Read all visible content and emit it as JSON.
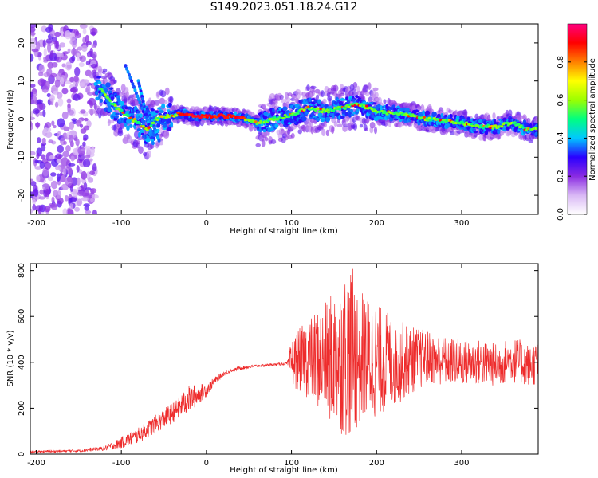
{
  "title": "S149.2023.051.18.24.G12",
  "chart_data": [
    {
      "type": "heatmap",
      "title": "S149.2023.051.18.24.G12",
      "xlabel": "Height of straight line (km)",
      "ylabel": "Frequency (Hz)",
      "xlim": [
        -207,
        390
      ],
      "ylim": [
        -25,
        25
      ],
      "x_ticks": [
        -200,
        -100,
        0,
        100,
        200,
        300
      ],
      "y_ticks": [
        -20,
        -10,
        0,
        10,
        20
      ],
      "grid": false,
      "colorbar": {
        "label": "Normalized spectral amplitude",
        "range": [
          0,
          1
        ],
        "ticks": [
          0.0,
          0.2,
          0.4,
          0.6,
          0.8
        ],
        "colors": [
          "#ffffff",
          "#d9b8f5",
          "#8a2be2",
          "#2a00ff",
          "#00c8ff",
          "#00ff80",
          "#9bff00",
          "#ffff00",
          "#ff8000",
          "#ff0000",
          "#ff0080"
        ]
      },
      "ridge": {
        "description_only": false,
        "x": [
          -125,
          -110,
          -95,
          -80,
          -70,
          -60,
          -50,
          -40,
          -30,
          -20,
          0,
          20,
          40,
          60,
          80,
          100,
          120,
          140,
          160,
          180,
          200,
          220,
          240,
          260,
          280,
          300,
          320,
          340,
          360,
          380,
          390
        ],
        "y": [
          8,
          4,
          1,
          -1,
          -3,
          0,
          0.5,
          1,
          1.5,
          0.8,
          0.8,
          0.8,
          0.5,
          -1,
          0,
          1,
          3,
          2,
          3,
          4,
          2,
          1.5,
          1,
          0,
          -0.5,
          -1,
          -2,
          -2,
          -1,
          -3,
          -2.5
        ]
      },
      "noise_region_x": [
        -207,
        -130
      ]
    },
    {
      "type": "line",
      "xlabel": "Height of straight line (km)",
      "ylabel": "SNR (10 * v/v)",
      "xlim": [
        -207,
        390
      ],
      "ylim": [
        0,
        830
      ],
      "x_ticks": [
        -200,
        -100,
        0,
        100,
        200,
        300
      ],
      "y_ticks": [
        0,
        200,
        400,
        600,
        800
      ],
      "grid": false,
      "series": [
        {
          "color": "#ee2c2c",
          "x": [
            -207,
            -150,
            -120,
            -100,
            -80,
            -60,
            -40,
            -20,
            0,
            10,
            20,
            30,
            40,
            60,
            80,
            95,
            100,
            120,
            140,
            160,
            170,
            180,
            200,
            220,
            240,
            260,
            280,
            300,
            320,
            340,
            360,
            380,
            390
          ],
          "y": [
            10,
            15,
            25,
            50,
            80,
            130,
            180,
            240,
            280,
            320,
            350,
            365,
            375,
            385,
            390,
            395,
            400,
            420,
            410,
            430,
            450,
            420,
            410,
            400,
            410,
            420,
            410,
            400,
            400,
            390,
            410,
            390,
            395
          ],
          "spread": [
            5,
            5,
            10,
            25,
            35,
            40,
            45,
            60,
            30,
            15,
            10,
            8,
            8,
            6,
            6,
            6,
            100,
            180,
            250,
            350,
            380,
            300,
            250,
            200,
            150,
            120,
            110,
            100,
            100,
            95,
            100,
            95,
            95
          ]
        }
      ]
    }
  ]
}
